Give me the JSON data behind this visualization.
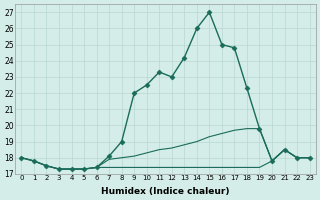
{
  "xlabel": "Humidex (Indice chaleur)",
  "ylabel": "",
  "background_color": "#d4ede8",
  "line_color": "#1a6b5a",
  "xlim": [
    -0.5,
    23.5
  ],
  "ylim": [
    17,
    27.5
  ],
  "yticks": [
    17,
    18,
    19,
    20,
    21,
    22,
    23,
    24,
    25,
    26,
    27
  ],
  "xticks": [
    0,
    1,
    2,
    3,
    4,
    5,
    6,
    7,
    8,
    9,
    10,
    11,
    12,
    13,
    14,
    15,
    16,
    17,
    18,
    19,
    20,
    21,
    22,
    23
  ],
  "series": [
    {
      "x": [
        0,
        1,
        2,
        3,
        4,
        5,
        6,
        7,
        8,
        9,
        10,
        11,
        12,
        13,
        14,
        15,
        16,
        17,
        18,
        19,
        20,
        21,
        22,
        23
      ],
      "y": [
        18.0,
        17.8,
        17.5,
        17.3,
        17.3,
        17.3,
        17.4,
        18.1,
        19.0,
        22.0,
        22.5,
        23.3,
        23.0,
        24.2,
        26.0,
        27.0,
        25.0,
        24.8,
        22.3,
        19.8,
        17.8,
        18.5,
        18.0,
        18.0
      ],
      "marker": "D",
      "markersize": 2.5,
      "linewidth": 1.0,
      "linestyle": "-"
    },
    {
      "x": [
        0,
        1,
        2,
        3,
        4,
        5,
        6,
        7,
        8,
        9,
        10,
        11,
        12,
        13,
        14,
        15,
        16,
        17,
        18,
        19,
        20,
        21,
        22,
        23
      ],
      "y": [
        18.0,
        17.8,
        17.5,
        17.3,
        17.3,
        17.3,
        17.4,
        17.9,
        18.0,
        18.1,
        18.3,
        18.5,
        18.6,
        18.8,
        19.0,
        19.3,
        19.5,
        19.7,
        19.8,
        19.8,
        17.8,
        18.5,
        18.0,
        18.0
      ],
      "marker": null,
      "markersize": 0,
      "linewidth": 0.8,
      "linestyle": "-"
    },
    {
      "x": [
        0,
        1,
        2,
        3,
        4,
        5,
        6,
        7,
        8,
        9,
        10,
        11,
        12,
        13,
        14,
        15,
        16,
        17,
        18,
        19,
        20,
        21,
        22,
        23
      ],
      "y": [
        18.0,
        17.8,
        17.5,
        17.3,
        17.3,
        17.3,
        17.4,
        17.4,
        17.4,
        17.4,
        17.4,
        17.4,
        17.4,
        17.4,
        17.4,
        17.4,
        17.4,
        17.4,
        17.4,
        17.4,
        17.8,
        18.5,
        18.0,
        18.0
      ],
      "marker": null,
      "markersize": 0,
      "linewidth": 0.8,
      "linestyle": "-"
    }
  ]
}
